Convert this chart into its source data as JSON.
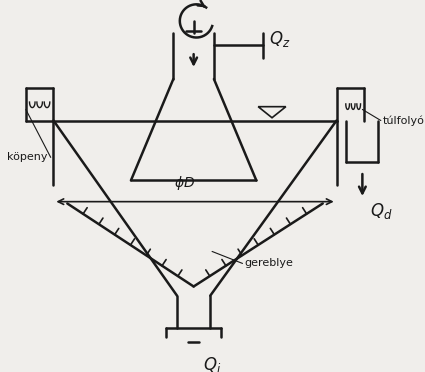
{
  "title": "",
  "bg_color": "#f0eeeb",
  "line_color": "#1a1a1a",
  "lw": 1.8,
  "labels": {
    "Qz": "Q_z",
    "Qd": "Q_d",
    "Qi": "Q_i",
    "tulfolyo": "túlfolyó",
    "kopeny": "köpeny",
    "phiD": "φD",
    "gereblye": "gereblye"
  }
}
